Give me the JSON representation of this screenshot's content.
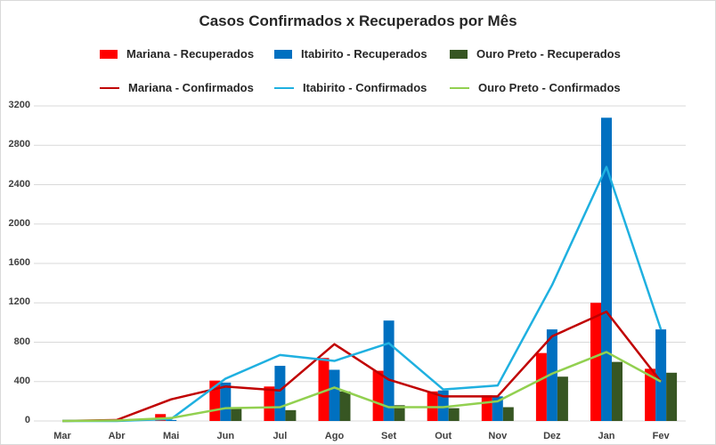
{
  "chart_data": {
    "type": "bar+line",
    "title": "Casos Confirmados x Recuperados por Mês",
    "xlabel": "",
    "ylabel": "",
    "ylim": [
      0,
      3200
    ],
    "yticks": [
      0,
      400,
      800,
      1200,
      1600,
      2000,
      2400,
      2800,
      3200
    ],
    "grid": true,
    "legend_position": "top",
    "categories": [
      "Mar",
      "Abr",
      "Mai",
      "Jun",
      "Jul",
      "Ago",
      "Set",
      "Out",
      "Nov",
      "Dez",
      "Jan",
      "Fev"
    ],
    "series": [
      {
        "name": "Mariana - Recuperados",
        "kind": "bar",
        "color": "#ff0000",
        "values": [
          0,
          0,
          70,
          410,
          350,
          640,
          510,
          300,
          260,
          690,
          1200,
          530
        ]
      },
      {
        "name": "Itabirito - Recuperados",
        "kind": "bar",
        "color": "#0070c0",
        "values": [
          0,
          0,
          10,
          390,
          560,
          520,
          1020,
          310,
          250,
          930,
          3080,
          930
        ]
      },
      {
        "name": "Ouro Preto - Recuperados",
        "kind": "bar",
        "color": "#375623",
        "values": [
          0,
          0,
          0,
          130,
          110,
          300,
          160,
          130,
          140,
          450,
          600,
          490
        ]
      },
      {
        "name": "Mariana - Confirmados",
        "kind": "line",
        "color": "#c00000",
        "values": [
          0,
          10,
          220,
          350,
          310,
          780,
          420,
          250,
          250,
          860,
          1110,
          400
        ]
      },
      {
        "name": "Itabirito - Confirmados",
        "kind": "line",
        "color": "#1fb0e0",
        "values": [
          0,
          0,
          20,
          430,
          670,
          610,
          790,
          320,
          360,
          1380,
          2580,
          930
        ]
      },
      {
        "name": "Ouro Preto - Confirmados",
        "kind": "line",
        "color": "#92d050",
        "values": [
          0,
          5,
          30,
          130,
          140,
          340,
          140,
          140,
          200,
          480,
          700,
          400
        ]
      }
    ]
  },
  "legend": [
    {
      "label": "Mariana - Recuperados",
      "kind": "bar",
      "color": "#ff0000"
    },
    {
      "label": "Itabirito - Recuperados",
      "kind": "bar",
      "color": "#0070c0"
    },
    {
      "label": "Ouro Preto - Recuperados",
      "kind": "bar",
      "color": "#375623"
    },
    {
      "label": "Mariana - Confirmados",
      "kind": "line",
      "color": "#c00000"
    },
    {
      "label": "Itabirito - Confirmados",
      "kind": "line",
      "color": "#1fb0e0"
    },
    {
      "label": "Ouro Preto - Confirmados",
      "kind": "line",
      "color": "#92d050"
    }
  ]
}
